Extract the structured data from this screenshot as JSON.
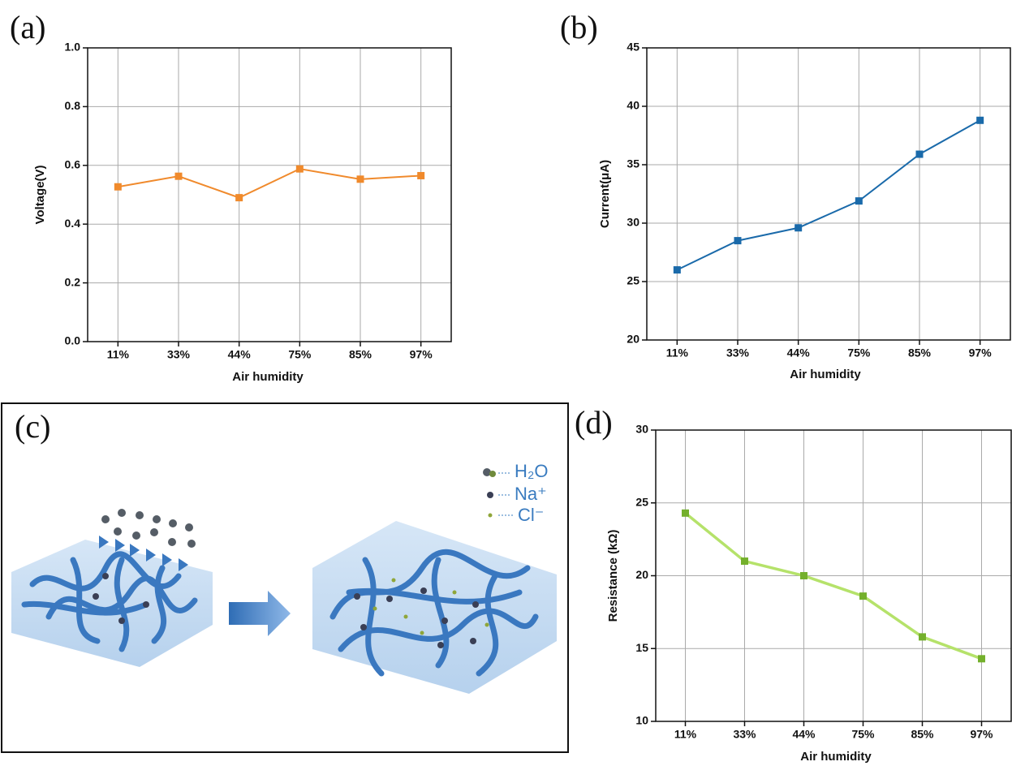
{
  "chart_data": [
    {
      "type": "line",
      "panel": "(a)",
      "x_label": "Air humidity",
      "y_label": "Voltage(V)",
      "categories": [
        "11%",
        "33%",
        "44%",
        "75%",
        "85%",
        "97%"
      ],
      "values": [
        0.527,
        0.563,
        0.49,
        0.588,
        0.553,
        0.565
      ],
      "color": "#f08a2c",
      "marker_color": "#f08a2c",
      "ylim": [
        0,
        1
      ],
      "yticks": [
        {
          "value": 0,
          "label": "0.0"
        },
        0.2,
        0.4,
        0.6,
        0.8,
        {
          "value": 1,
          "label": "1.0"
        }
      ],
      "grid": true
    },
    {
      "type": "line",
      "panel": "(b)",
      "x_label": "Air humidity",
      "y_label": "Current(μA)",
      "categories": [
        "11%",
        "33%",
        "44%",
        "75%",
        "85%",
        "97%"
      ],
      "values": [
        26.0,
        28.5,
        29.6,
        31.9,
        35.9,
        38.8
      ],
      "color": "#1a6aaa",
      "marker_color": "#1a6aaa",
      "ylim": [
        20,
        45
      ],
      "yticks": [
        20,
        25,
        30,
        35,
        40,
        45
      ],
      "grid": true
    },
    {
      "type": "line",
      "panel": "(d)",
      "x_label": "Air humidity",
      "y_label": "Resistance (kΩ)",
      "categories": [
        "11%",
        "33%",
        "44%",
        "75%",
        "85%",
        "97%"
      ],
      "values": [
        24.3,
        21.0,
        20.0,
        18.6,
        15.8,
        14.3
      ],
      "color": "#b5e26a",
      "marker_color": "#74b02c",
      "ylim": [
        10,
        30
      ],
      "yticks": [
        10,
        15,
        20,
        25,
        30
      ],
      "grid": true
    }
  ],
  "diagram": {
    "panel": "(c)",
    "legend": [
      "H₂O",
      "Na⁺",
      "Cl⁻"
    ]
  }
}
